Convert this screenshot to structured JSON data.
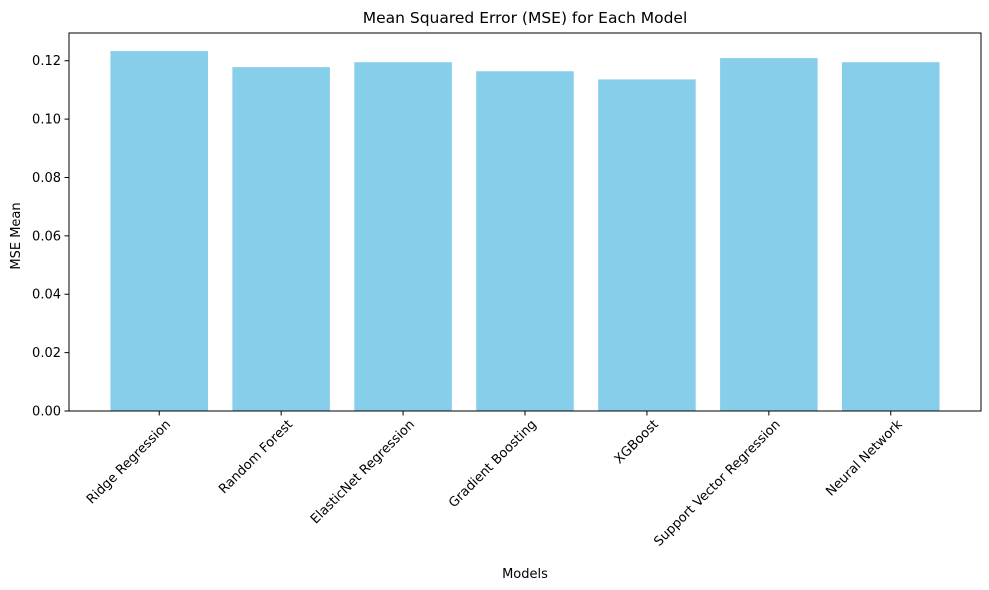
{
  "colors": {
    "bar": "#87CEEB",
    "axis": "#000000",
    "background": "#ffffff"
  },
  "chart_data": {
    "type": "bar",
    "title": "Mean Squared Error (MSE) for Each Model",
    "xlabel": "Models",
    "ylabel": "MSE Mean",
    "categories": [
      "Ridge Regression",
      "Random Forest",
      "ElasticNet Regression",
      "Gradient Boosting",
      "XGBoost",
      "Support Vector Regression",
      "Neural Network"
    ],
    "values": [
      0.1233,
      0.1178,
      0.1195,
      0.1164,
      0.1136,
      0.1209,
      0.1195
    ],
    "ylim": [
      0,
      0.1295
    ],
    "yticks": [
      0.0,
      0.02,
      0.04,
      0.06,
      0.08,
      0.1,
      0.12
    ],
    "ytick_labels": [
      "0.00",
      "0.02",
      "0.04",
      "0.06",
      "0.08",
      "0.10",
      "0.12"
    ],
    "xtick_rotation_deg": 45,
    "grid": false,
    "legend": "none"
  }
}
